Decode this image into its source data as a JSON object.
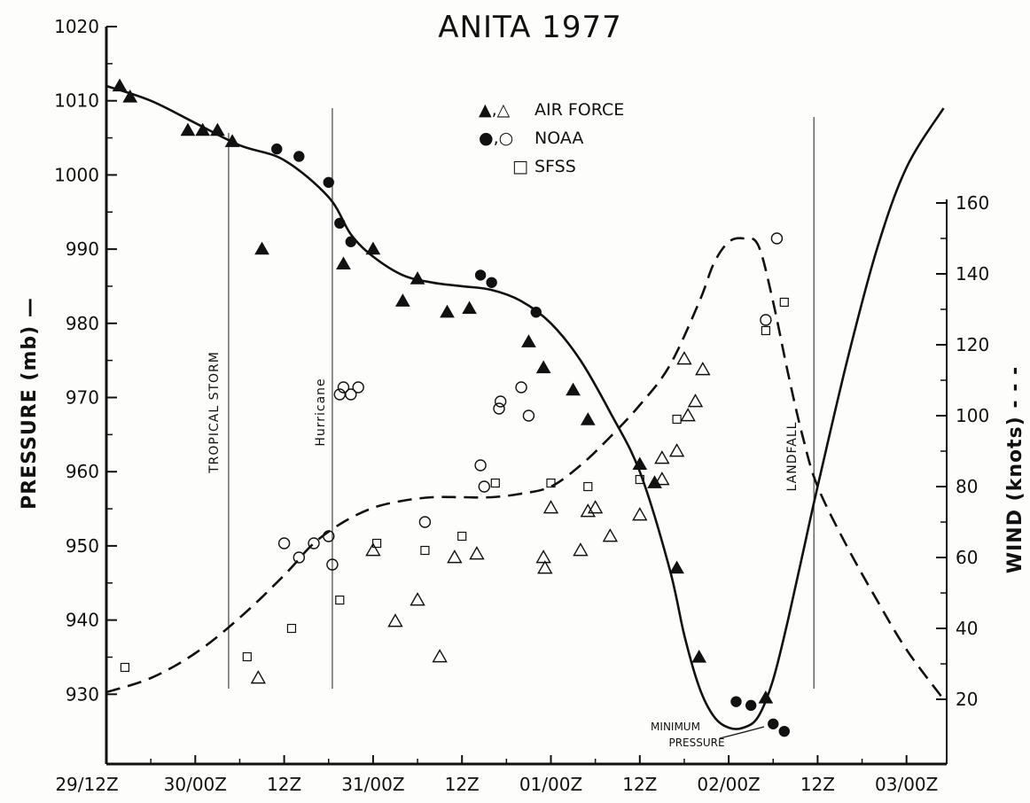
{
  "chart_data": {
    "type": "line",
    "title": "ANITA 1977",
    "y_left_label": "PRESSURE (mb) —",
    "y_right_label": "WIND (knots) - - -",
    "x_ticks": [
      "29/12Z",
      "30/00Z",
      "12Z",
      "31/00Z",
      "12Z",
      "01/00Z",
      "12Z",
      "02/00Z",
      "12Z",
      "03/00Z"
    ],
    "x_unit": "hours after 29/12Z (tick spacing 12 h)",
    "y_left_ticks": [
      "1020",
      "1010",
      "1000",
      "990",
      "980",
      "970",
      "960",
      "950",
      "940",
      "930"
    ],
    "y_left_range": [
      925,
      1020
    ],
    "y_right_ticks": [
      "20",
      "40",
      "60",
      "80",
      "100",
      "120",
      "140",
      "160"
    ],
    "y_right_range": [
      10,
      160
    ],
    "legend": {
      "items": [
        {
          "symbol": "▲,△",
          "label": "AIR FORCE"
        },
        {
          "symbol": "●,○",
          "label": "NOAA"
        },
        {
          "symbol": "□",
          "label": "SFSS"
        }
      ]
    },
    "annotations": {
      "tropical_storm": "TROPICAL STORM",
      "hurricane": "Hurricane",
      "landfall": "LANDFALL",
      "minimum_pressure_1": "MINIMUM",
      "minimum_pressure_2": "PRESSURE"
    },
    "event_lines_hours": [
      16.5,
      30.5,
      95.5
    ],
    "series": [
      {
        "name": "Pressure",
        "axis": "left",
        "style": "solid",
        "x": [
          0,
          6,
          12,
          18,
          24,
          30,
          33,
          36,
          40,
          44,
          48,
          52,
          56,
          60,
          64,
          68,
          72,
          76,
          78,
          80,
          82,
          84,
          86,
          88,
          90,
          92,
          94,
          96,
          100,
          104,
          108,
          113
        ],
        "y": [
          1012,
          1010,
          1007,
          1004,
          1002,
          997,
          992,
          989,
          986.5,
          985.5,
          985,
          984.5,
          983,
          980,
          975,
          968,
          960,
          947,
          938,
          931,
          927,
          925.5,
          925.5,
          927,
          932,
          940,
          949,
          958,
          975,
          990,
          1001,
          1009
        ]
      },
      {
        "name": "Wind",
        "axis": "right",
        "style": "dashed",
        "x": [
          0,
          6,
          12,
          18,
          24,
          28,
          32,
          36,
          40,
          44,
          48,
          52,
          56,
          60,
          64,
          68,
          72,
          76,
          80,
          82,
          84,
          86,
          88,
          90,
          92,
          94,
          96,
          100,
          104,
          108,
          113
        ],
        "y": [
          22,
          26,
          33,
          43,
          55,
          64,
          70,
          74,
          76,
          77,
          77,
          77,
          78,
          80,
          86,
          94,
          103,
          114,
          132,
          143,
          149,
          150,
          148,
          132,
          112,
          94,
          80,
          63,
          48,
          34,
          20
        ]
      },
      {
        "name": "Air Force pressure",
        "axis": "left",
        "marker": "filled-triangle",
        "x": [
          1.8,
          3.2,
          11,
          13,
          15,
          17,
          21,
          32,
          36,
          40,
          42,
          46,
          49,
          57,
          59,
          63,
          65,
          72,
          74,
          77,
          80,
          89
        ],
        "y": [
          1012,
          1010.5,
          1006,
          1006,
          1006,
          1004.5,
          990,
          988,
          990,
          983,
          986,
          981.5,
          982,
          977.5,
          974,
          971,
          967,
          961,
          958.5,
          947,
          935,
          929.5
        ]
      },
      {
        "name": "NOAA pressure",
        "axis": "left",
        "marker": "filled-circle",
        "x": [
          23,
          26,
          30,
          31.5,
          33,
          50.5,
          52,
          58,
          85,
          87,
          90,
          91.5
        ],
        "y": [
          1003.5,
          1002.5,
          999,
          993.5,
          991,
          986.5,
          985.5,
          981.5,
          929,
          928.5,
          926,
          925
        ]
      },
      {
        "name": "Air Force wind",
        "axis": "right",
        "marker": "open-triangle",
        "x": [
          20.5,
          36,
          39,
          42,
          45,
          47,
          50,
          59,
          59.2,
          60,
          64,
          65,
          66,
          68,
          72,
          75,
          75,
          77,
          78,
          78.5,
          79.5,
          80.5
        ],
        "y": [
          26,
          62,
          42,
          48,
          32,
          60,
          61,
          60,
          57,
          74,
          62,
          73,
          74,
          66,
          72,
          82,
          88,
          90,
          116,
          100,
          104,
          113
        ]
      },
      {
        "name": "NOAA wind",
        "axis": "right",
        "marker": "open-circle",
        "x": [
          24,
          26,
          28,
          30,
          30.5,
          31.5,
          32,
          33,
          34,
          43,
          50.5,
          51,
          53,
          53.2,
          56,
          57,
          89,
          90.5
        ],
        "y": [
          64,
          60,
          64,
          66,
          58,
          106,
          108,
          106,
          108,
          70,
          86,
          80,
          102,
          104,
          108,
          100,
          127,
          150
        ]
      },
      {
        "name": "SFSS wind",
        "axis": "right",
        "marker": "open-square",
        "x": [
          2.5,
          19,
          25,
          31.5,
          36.5,
          43,
          48,
          52.5,
          60,
          65,
          72,
          77,
          89,
          91.5
        ],
        "y": [
          29,
          32,
          40,
          48,
          64,
          62,
          66,
          81,
          81,
          80,
          82,
          99,
          124,
          132
        ]
      }
    ]
  }
}
